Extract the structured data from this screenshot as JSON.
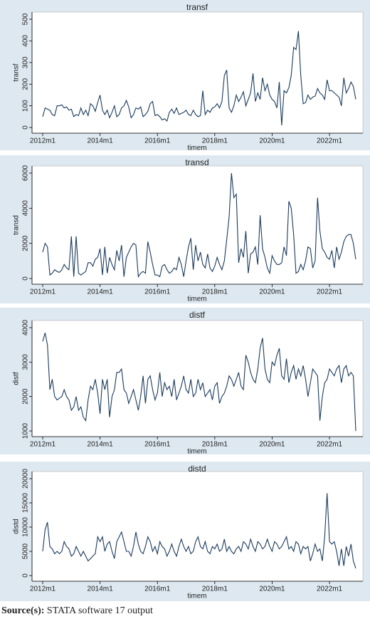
{
  "chart_data": [
    {
      "type": "line",
      "title": "transf",
      "y_label": "transf",
      "x_label": "timem",
      "color": "#1a3a5c",
      "x": [
        624,
        625,
        626,
        627,
        628,
        629,
        630,
        631,
        632,
        633,
        634,
        635,
        636,
        637,
        638,
        639,
        640,
        641,
        642,
        643,
        644,
        645,
        646,
        647,
        648,
        649,
        650,
        651,
        652,
        653,
        654,
        655,
        656,
        657,
        658,
        659,
        660,
        661,
        662,
        663,
        664,
        665,
        666,
        667,
        668,
        669,
        670,
        671,
        672,
        673,
        674,
        675,
        676,
        677,
        678,
        679,
        680,
        681,
        682,
        683,
        684,
        685,
        686,
        687,
        688,
        689,
        690,
        691,
        692,
        693,
        694,
        695,
        696,
        697,
        698,
        699,
        700,
        701,
        702,
        703,
        704,
        705,
        706,
        707,
        708,
        709,
        710,
        711,
        712,
        713,
        714,
        715,
        716,
        717,
        718,
        719,
        720,
        721,
        722,
        723,
        724,
        725,
        726,
        727,
        728,
        729,
        730,
        731,
        732,
        733,
        734,
        735,
        736,
        737,
        738,
        739,
        740,
        741,
        742,
        743,
        744,
        745,
        746,
        747,
        748,
        749,
        750,
        751,
        752,
        753,
        754,
        755
      ],
      "values": [
        50,
        90,
        85,
        80,
        60,
        55,
        100,
        100,
        105,
        90,
        95,
        80,
        85,
        50,
        60,
        55,
        90,
        60,
        80,
        55,
        110,
        100,
        75,
        115,
        150,
        80,
        60,
        80,
        45,
        70,
        100,
        50,
        60,
        90,
        100,
        125,
        95,
        45,
        60,
        90,
        85,
        95,
        50,
        60,
        75,
        110,
        120,
        55,
        60,
        50,
        35,
        40,
        30,
        70,
        85,
        65,
        90,
        60,
        65,
        70,
        80,
        60,
        55,
        80,
        60,
        50,
        55,
        170,
        60,
        80,
        70,
        90,
        95,
        110,
        90,
        120,
        240,
        265,
        90,
        70,
        100,
        150,
        120,
        140,
        165,
        100,
        130,
        160,
        250,
        120,
        160,
        130,
        230,
        170,
        200,
        150,
        130,
        120,
        90,
        210,
        10,
        170,
        160,
        185,
        240,
        370,
        360,
        445,
        240,
        110,
        115,
        150,
        130,
        140,
        145,
        180,
        160,
        150,
        130,
        220,
        170,
        170,
        160,
        150,
        140,
        100,
        230,
        160,
        180,
        210,
        190,
        130
      ],
      "xlim": [
        624,
        755
      ],
      "xticks": [
        {
          "value": 624,
          "label": "2012m1"
        },
        {
          "value": 648,
          "label": "2014m1"
        },
        {
          "value": 672,
          "label": "2016m1"
        },
        {
          "value": 696,
          "label": "2018m1"
        },
        {
          "value": 720,
          "label": "2020m1"
        },
        {
          "value": 744,
          "label": "2022m1"
        }
      ],
      "ylim": [
        0,
        500
      ],
      "yticks": [
        0,
        100,
        200,
        300,
        400,
        500
      ]
    },
    {
      "type": "line",
      "title": "transd",
      "y_label": "transd",
      "x_label": "timem",
      "color": "#1a3a5c",
      "x": [
        624,
        625,
        626,
        627,
        628,
        629,
        630,
        631,
        632,
        633,
        634,
        635,
        636,
        637,
        638,
        639,
        640,
        641,
        642,
        643,
        644,
        645,
        646,
        647,
        648,
        649,
        650,
        651,
        652,
        653,
        654,
        655,
        656,
        657,
        658,
        659,
        660,
        661,
        662,
        663,
        664,
        665,
        666,
        667,
        668,
        669,
        670,
        671,
        672,
        673,
        674,
        675,
        676,
        677,
        678,
        679,
        680,
        681,
        682,
        683,
        684,
        685,
        686,
        687,
        688,
        689,
        690,
        691,
        692,
        693,
        694,
        695,
        696,
        697,
        698,
        699,
        700,
        701,
        702,
        703,
        704,
        705,
        706,
        707,
        708,
        709,
        710,
        711,
        712,
        713,
        714,
        715,
        716,
        717,
        718,
        719,
        720,
        721,
        722,
        723,
        724,
        725,
        726,
        727,
        728,
        729,
        730,
        731,
        732,
        733,
        734,
        735,
        736,
        737,
        738,
        739,
        740,
        741,
        742,
        743,
        744,
        745,
        746,
        747,
        748,
        749,
        750,
        751,
        752,
        753,
        754,
        755
      ],
      "values": [
        1500,
        2000,
        1800,
        200,
        300,
        500,
        400,
        350,
        500,
        800,
        600,
        500,
        2400,
        100,
        2400,
        300,
        200,
        300,
        400,
        900,
        900,
        700,
        1100,
        1200,
        1700,
        200,
        1800,
        300,
        1200,
        800,
        500,
        1600,
        1000,
        1900,
        100,
        1200,
        1500,
        1800,
        2000,
        1900,
        100,
        300,
        400,
        300,
        2100,
        1500,
        800,
        200,
        200,
        100,
        700,
        800,
        500,
        300,
        400,
        600,
        500,
        1200,
        800,
        100,
        1000,
        1800,
        2300,
        500,
        1900,
        1000,
        1500,
        800,
        600,
        1400,
        600,
        400,
        700,
        1200,
        800,
        500,
        1000,
        2200,
        3500,
        6000,
        4600,
        4800,
        900,
        1700,
        1200,
        2700,
        300,
        1400,
        1500,
        1800,
        800,
        3600,
        1700,
        1200,
        600,
        300,
        1300,
        1000,
        800,
        800,
        900,
        1800,
        1300,
        4400,
        4000,
        2500,
        300,
        400,
        800,
        500,
        1000,
        1800,
        1700,
        600,
        1000,
        4600,
        2700,
        1700,
        1500,
        1200,
        1100,
        1600,
        600,
        1800,
        1100,
        1500,
        2100,
        2400,
        2500,
        2500,
        2000,
        1100
      ],
      "xlim": [
        624,
        755
      ],
      "xticks": [
        {
          "value": 624,
          "label": "2012m1"
        },
        {
          "value": 648,
          "label": "2014m1"
        },
        {
          "value": 672,
          "label": "2016m1"
        },
        {
          "value": 696,
          "label": "2018m1"
        },
        {
          "value": 720,
          "label": "2020m1"
        },
        {
          "value": 744,
          "label": "2022m1"
        }
      ],
      "ylim": [
        0,
        6000
      ],
      "yticks": [
        0,
        2000,
        4000,
        6000
      ]
    },
    {
      "type": "line",
      "title": "distf",
      "y_label": "distf",
      "x_label": "timem",
      "color": "#1a3a5c",
      "x": [
        624,
        625,
        626,
        627,
        628,
        629,
        630,
        631,
        632,
        633,
        634,
        635,
        636,
        637,
        638,
        639,
        640,
        641,
        642,
        643,
        644,
        645,
        646,
        647,
        648,
        649,
        650,
        651,
        652,
        653,
        654,
        655,
        656,
        657,
        658,
        659,
        660,
        661,
        662,
        663,
        664,
        665,
        666,
        667,
        668,
        669,
        670,
        671,
        672,
        673,
        674,
        675,
        676,
        677,
        678,
        679,
        680,
        681,
        682,
        683,
        684,
        685,
        686,
        687,
        688,
        689,
        690,
        691,
        692,
        693,
        694,
        695,
        696,
        697,
        698,
        699,
        700,
        701,
        702,
        703,
        704,
        705,
        706,
        707,
        708,
        709,
        710,
        711,
        712,
        713,
        714,
        715,
        716,
        717,
        718,
        719,
        720,
        721,
        722,
        723,
        724,
        725,
        726,
        727,
        728,
        729,
        730,
        731,
        732,
        733,
        734,
        735,
        736,
        737,
        738,
        739,
        740,
        741,
        742,
        743,
        744,
        745,
        746,
        747,
        748,
        749,
        750,
        751,
        752,
        753,
        754,
        755
      ],
      "values": [
        3600,
        3850,
        3500,
        2200,
        2500,
        2000,
        1900,
        1950,
        2000,
        2200,
        2000,
        1900,
        1600,
        1700,
        2000,
        1600,
        1700,
        1400,
        1300,
        1900,
        2300,
        2200,
        2500,
        2100,
        1500,
        2500,
        2200,
        2500,
        1400,
        2000,
        2200,
        2700,
        2700,
        2800,
        2200,
        2100,
        1800,
        2000,
        2200,
        1900,
        1600,
        2000,
        2600,
        1800,
        2500,
        2600,
        2200,
        1900,
        2100,
        2700,
        2000,
        2400,
        2200,
        2300,
        2000,
        2500,
        1900,
        2100,
        2300,
        2600,
        2200,
        2100,
        2500,
        2000,
        2100,
        2500,
        2200,
        2400,
        2000,
        2100,
        2200,
        1900,
        2300,
        2400,
        1800,
        2000,
        2100,
        2300,
        2600,
        2500,
        2300,
        2500,
        2700,
        2300,
        2200,
        3200,
        3000,
        2700,
        2500,
        2400,
        2800,
        3400,
        3700,
        2800,
        2500,
        2400,
        3000,
        2900,
        3200,
        3400,
        2600,
        2500,
        3100,
        2400,
        2700,
        2900,
        2500,
        2800,
        2600,
        2900,
        2500,
        2000,
        2400,
        2800,
        2700,
        2600,
        1300,
        2000,
        2400,
        2500,
        2800,
        2700,
        2600,
        2800,
        2900,
        2400,
        2800,
        2900,
        2600,
        2700,
        2600,
        1000
      ],
      "xlim": [
        624,
        755
      ],
      "xticks": [
        {
          "value": 624,
          "label": "2012m1"
        },
        {
          "value": 648,
          "label": "2014m1"
        },
        {
          "value": 672,
          "label": "2016m1"
        },
        {
          "value": 696,
          "label": "2018m1"
        },
        {
          "value": 720,
          "label": "2020m1"
        },
        {
          "value": 744,
          "label": "2022m1"
        }
      ],
      "ylim": [
        1000,
        4000
      ],
      "yticks": [
        1000,
        2000,
        3000,
        4000
      ]
    },
    {
      "type": "line",
      "title": "distd",
      "y_label": "distd",
      "x_label": "timem",
      "color": "#1a3a5c",
      "x": [
        624,
        625,
        626,
        627,
        628,
        629,
        630,
        631,
        632,
        633,
        634,
        635,
        636,
        637,
        638,
        639,
        640,
        641,
        642,
        643,
        644,
        645,
        646,
        647,
        648,
        649,
        650,
        651,
        652,
        653,
        654,
        655,
        656,
        657,
        658,
        659,
        660,
        661,
        662,
        663,
        664,
        665,
        666,
        667,
        668,
        669,
        670,
        671,
        672,
        673,
        674,
        675,
        676,
        677,
        678,
        679,
        680,
        681,
        682,
        683,
        684,
        685,
        686,
        687,
        688,
        689,
        690,
        691,
        692,
        693,
        694,
        695,
        696,
        697,
        698,
        699,
        700,
        701,
        702,
        703,
        704,
        705,
        706,
        707,
        708,
        709,
        710,
        711,
        712,
        713,
        714,
        715,
        716,
        717,
        718,
        719,
        720,
        721,
        722,
        723,
        724,
        725,
        726,
        727,
        728,
        729,
        730,
        731,
        732,
        733,
        734,
        735,
        736,
        737,
        738,
        739,
        740,
        741,
        742,
        743,
        744,
        745,
        746,
        747,
        748,
        749,
        750,
        751,
        752,
        753,
        754,
        755
      ],
      "values": [
        5000,
        9500,
        11000,
        6000,
        5500,
        4500,
        5000,
        4500,
        5000,
        7000,
        6000,
        5500,
        4000,
        4500,
        6000,
        5000,
        4000,
        5000,
        4000,
        3000,
        3500,
        4000,
        4500,
        8000,
        7000,
        8000,
        5000,
        6500,
        7000,
        5000,
        3500,
        7000,
        8000,
        9000,
        7000,
        5000,
        5000,
        4000,
        6000,
        9000,
        6500,
        5000,
        4500,
        6000,
        8000,
        7000,
        5000,
        6000,
        4500,
        7000,
        6000,
        5500,
        4000,
        5000,
        6500,
        5000,
        4000,
        6000,
        7500,
        6000,
        5000,
        6000,
        4500,
        5000,
        7000,
        8000,
        6000,
        5500,
        7000,
        5000,
        4500,
        6000,
        5500,
        6500,
        5000,
        5500,
        7500,
        5000,
        6000,
        5000,
        4500,
        5500,
        6000,
        5000,
        7000,
        6500,
        5500,
        7500,
        6000,
        5000,
        7000,
        6500,
        5500,
        6000,
        7500,
        6000,
        5000,
        7000,
        6500,
        5500,
        6000,
        7000,
        8000,
        5500,
        6000,
        5000,
        7000,
        6500,
        4500,
        6000,
        5500,
        6000,
        3000,
        4500,
        6500,
        5000,
        5500,
        3000,
        8000,
        17000,
        7000,
        6500,
        7000,
        5000,
        2000,
        5500,
        2000,
        6000,
        4000,
        6500,
        3000,
        1500
      ],
      "xlim": [
        624,
        755
      ],
      "xticks": [
        {
          "value": 624,
          "label": "2012m1"
        },
        {
          "value": 648,
          "label": "2014m1"
        },
        {
          "value": 672,
          "label": "2016m1"
        },
        {
          "value": 696,
          "label": "2018m1"
        },
        {
          "value": 720,
          "label": "2020m1"
        },
        {
          "value": 744,
          "label": "2022m1"
        }
      ],
      "ylim": [
        0,
        20000
      ],
      "yticks": [
        0,
        5000,
        10000,
        15000,
        20000
      ]
    }
  ],
  "source": {
    "label": "Source(s):",
    "text": "STATA software 17 output"
  }
}
